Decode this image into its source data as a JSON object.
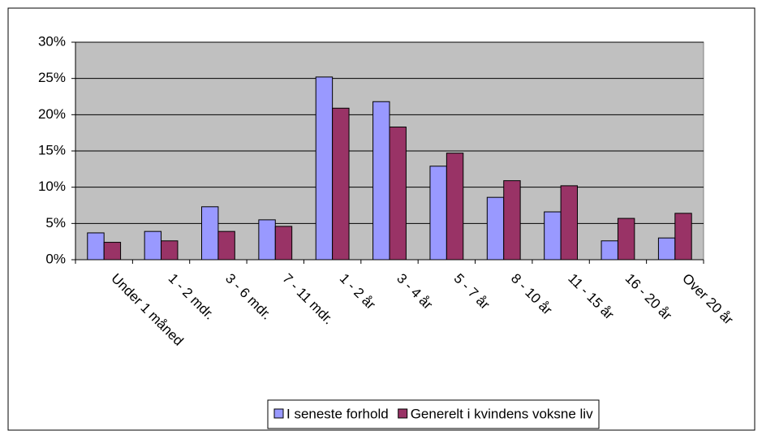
{
  "chart_data": {
    "type": "bar",
    "categories": [
      "Under 1 måned",
      "1 - 2 mdr.",
      "3 - 6 mdr.",
      "7 - 11 mdr.",
      "1 - 2 år",
      "3 - 4 år",
      "5 - 7 år",
      "8 - 10 år",
      "11 - 15 år",
      "16 - 20 år",
      "Over 20 år"
    ],
    "series": [
      {
        "name": "I seneste forhold",
        "color": "#9999ff",
        "values": [
          3.7,
          3.9,
          7.3,
          5.5,
          25.2,
          21.8,
          12.9,
          8.6,
          6.6,
          2.6,
          3.0
        ]
      },
      {
        "name": "Generelt i kvindens voksne liv",
        "color": "#993366",
        "values": [
          2.4,
          2.6,
          3.9,
          4.6,
          20.9,
          18.3,
          14.7,
          10.9,
          10.2,
          5.7,
          6.4
        ]
      }
    ],
    "ylim": [
      0,
      30
    ],
    "yticks": [
      {
        "value": 0,
        "label": "0%"
      },
      {
        "value": 5,
        "label": "5%"
      },
      {
        "value": 10,
        "label": "10%"
      },
      {
        "value": 15,
        "label": "15%"
      },
      {
        "value": 20,
        "label": "20%"
      },
      {
        "value": 25,
        "label": "25%"
      },
      {
        "value": 30,
        "label": "30%"
      }
    ],
    "grid": true,
    "legend": "bottom"
  }
}
